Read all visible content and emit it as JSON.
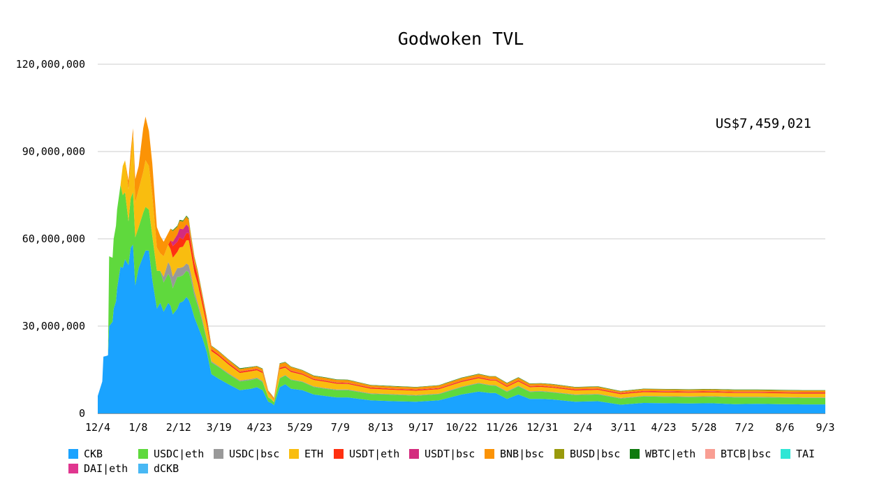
{
  "chart_data": {
    "type": "area",
    "stacked": true,
    "title": "Godwoken TVL",
    "annotation": "US$7,459,021",
    "xlabel": "",
    "ylabel": "",
    "ylim": [
      0,
      120000000
    ],
    "y_ticks": [
      0,
      30000000,
      60000000,
      90000000,
      120000000
    ],
    "y_tick_labels": [
      "0",
      "30,000,000",
      "60,000,000",
      "90,000,000",
      "120,000,000"
    ],
    "x_tick_labels": [
      "12/4",
      "1/8",
      "2/12",
      "3/19",
      "4/23",
      "5/29",
      "7/9",
      "8/13",
      "9/17",
      "10/22",
      "11/26",
      "12/31",
      "2/4",
      "3/11",
      "4/23",
      "5/28",
      "7/2",
      "8/6",
      "9/3"
    ],
    "grid": "horizontal",
    "legend_position": "bottom",
    "x_index": [
      0,
      4,
      5,
      8,
      9,
      10,
      13,
      14,
      16,
      17,
      20,
      22,
      24,
      27,
      29,
      31,
      33,
      36,
      40,
      42,
      45,
      48,
      52,
      55,
      58,
      62,
      64,
      66,
      70,
      72,
      75,
      78,
      80,
      82,
      85,
      88,
      92,
      96,
      100,
      106,
      115,
      125,
      135,
      140,
      145,
      150,
      153,
      155,
      160,
      165,
      170,
      180,
      190,
      200,
      210,
      220,
      240,
      260,
      280,
      300,
      320,
      335,
      345,
      350,
      360,
      370,
      380,
      390,
      400,
      420,
      440,
      460,
      480,
      500,
      520,
      540,
      560,
      580,
      600,
      620,
      640
    ],
    "series": [
      {
        "name": "CKB",
        "color": "#1aa3ff",
        "values": [
          6.0,
          11.0,
          19.5,
          19.8,
          20.0,
          30.0,
          31.5,
          36.0,
          38.5,
          43.0,
          50.5,
          50.0,
          53.0,
          51.0,
          57.0,
          58.0,
          44.0,
          50.0,
          54.0,
          56.0,
          56.0,
          46.0,
          36.0,
          38.0,
          35.0,
          38.0,
          37.0,
          34.0,
          36.0,
          38.0,
          38.5,
          40.0,
          39.0,
          37.0,
          33.0,
          30.0,
          26.0,
          21.0,
          13.5,
          12.0,
          10.0,
          8.0,
          8.5,
          9.0,
          8.0,
          4.0,
          3.5,
          2.8,
          9.0,
          10.0,
          8.5,
          8.0,
          6.5,
          6.0,
          5.5,
          5.5,
          4.5,
          4.2,
          4.0,
          4.5,
          6.5,
          7.5,
          7.0,
          7.0,
          5.0,
          6.5,
          5.0,
          5.0,
          4.8,
          4.0,
          4.2,
          3.0,
          3.6,
          3.5,
          3.4,
          3.5,
          3.2,
          3.3,
          3.2,
          3.1,
          3.1
        ]
      },
      {
        "name": "USDC|eth",
        "color": "#5fd93d",
        "values": [
          0,
          0,
          0,
          0,
          0,
          24.0,
          22.0,
          24.0,
          26.0,
          27.0,
          28.0,
          25.0,
          23.0,
          15.0,
          17.0,
          18.0,
          16.5,
          14.0,
          15.0,
          15.0,
          14.0,
          15.0,
          13.0,
          11.0,
          10.0,
          10.0,
          9.5,
          9.0,
          11.0,
          9.0,
          9.0,
          9.0,
          9.5,
          9.0,
          7.5,
          7.0,
          5.5,
          4.0,
          4.0,
          4.0,
          3.5,
          3.0,
          3.0,
          3.0,
          2.8,
          1.5,
          1.2,
          1.0,
          3.0,
          3.0,
          3.0,
          2.8,
          2.6,
          2.5,
          2.5,
          2.5,
          2.2,
          2.2,
          2.1,
          2.1,
          2.5,
          2.8,
          2.6,
          2.5,
          2.4,
          2.8,
          2.4,
          2.5,
          2.4,
          2.3,
          2.3,
          2.1,
          2.2,
          2.2,
          2.2,
          2.2,
          2.3,
          2.2,
          2.2,
          2.2,
          2.2
        ]
      },
      {
        "name": "USDC|bsc",
        "color": "#999999",
        "values": [
          0,
          0,
          0,
          0,
          0,
          0,
          0,
          0,
          0,
          0,
          0,
          0,
          0,
          0,
          0,
          0,
          0,
          0,
          0,
          0,
          0,
          0,
          0,
          0,
          2.0,
          4.0,
          4.0,
          4.0,
          3.0,
          3.0,
          2.8,
          2.5,
          2.5,
          2.0,
          1.5,
          1.0,
          0.8,
          0.6,
          0.4,
          0.3,
          0.3,
          0.3,
          0.3,
          0.3,
          0.3,
          0.1,
          0.1,
          0.1,
          0.2,
          0.2,
          0.2,
          0.2,
          0.2,
          0.2,
          0.2,
          0.2,
          0.2,
          0.2,
          0.2,
          0.2,
          0.2,
          0.2,
          0.2,
          0.2,
          0.2,
          0.2,
          0.2,
          0.2,
          0.2,
          0.2,
          0.2,
          0.2,
          0.2,
          0.2,
          0.2,
          0.2,
          0.2,
          0.2,
          0.2,
          0.2,
          0.2
        ]
      },
      {
        "name": "ETH",
        "color": "#f9bd0f",
        "values": [
          0,
          0,
          0,
          0,
          0,
          0,
          0,
          0,
          0,
          0,
          0,
          10.0,
          11.0,
          11.0,
          12.0,
          20.0,
          12.0,
          13.0,
          14.0,
          16.0,
          15.0,
          14.0,
          8.0,
          6.0,
          7.0,
          6.0,
          6.0,
          6.5,
          5.5,
          7.0,
          7.0,
          8.0,
          8.5,
          7.5,
          6.5,
          6.5,
          5.0,
          4.5,
          3.5,
          3.5,
          3.0,
          2.6,
          2.7,
          2.5,
          2.8,
          1.5,
          1.0,
          0.8,
          3.0,
          2.5,
          2.5,
          2.3,
          2.2,
          2.2,
          2.0,
          1.9,
          1.6,
          1.5,
          1.5,
          1.5,
          1.6,
          1.6,
          1.5,
          1.6,
          1.5,
          1.5,
          1.4,
          1.4,
          1.4,
          1.4,
          1.4,
          1.3,
          1.3,
          1.3,
          1.3,
          1.3,
          1.3,
          1.3,
          1.3,
          1.3,
          1.3
        ]
      },
      {
        "name": "USDT|eth",
        "color": "#ff3010",
        "values": [
          0,
          0,
          0,
          0,
          0,
          0,
          0,
          0,
          0,
          0,
          0,
          0,
          0,
          0,
          0,
          0,
          0,
          0,
          0,
          0,
          0,
          0,
          0,
          0,
          0,
          0,
          3.0,
          4.0,
          3.5,
          3.5,
          2.5,
          2.5,
          2.5,
          3.0,
          3.0,
          2.5,
          2.0,
          1.5,
          0.6,
          0.5,
          0.5,
          0.4,
          0.4,
          0.4,
          0.4,
          0.2,
          0.2,
          0.2,
          0.4,
          0.4,
          0.4,
          0.3,
          0.3,
          0.3,
          0.3,
          0.3,
          0.3,
          0.3,
          0.3,
          0.3,
          0.3,
          0.3,
          0.3,
          0.3,
          0.3,
          0.3,
          0.3,
          0.3,
          0.3,
          0.3,
          0.3,
          0.3,
          0.3,
          0.3,
          0.3,
          0.3,
          0.3,
          0.3,
          0.3,
          0.3,
          0.3
        ]
      },
      {
        "name": "USDT|bsc",
        "color": "#d42b7e",
        "values": [
          0,
          0,
          0,
          0,
          0,
          0,
          0,
          0,
          0,
          0,
          0,
          0,
          0,
          0,
          0,
          0,
          0,
          0,
          0,
          0,
          0,
          0,
          0,
          0,
          0,
          0,
          0,
          1.5,
          2.5,
          3.0,
          3.5,
          3.0,
          2.0,
          0.5,
          0.3,
          0.2,
          0.2,
          0.1,
          0.1,
          0.1,
          0.1,
          0.1,
          0.1,
          0.1,
          0.1,
          0.05,
          0.05,
          0.05,
          0.1,
          0.1,
          0.1,
          0.1,
          0.1,
          0.1,
          0.1,
          0.1,
          0.1,
          0.1,
          0.1,
          0.1,
          0.1,
          0.1,
          0.1,
          0.1,
          0.1,
          0.1,
          0.1,
          0.1,
          0.1,
          0.1,
          0.1,
          0.1,
          0.1,
          0.1,
          0.1,
          0.1,
          0.1,
          0.1,
          0.1,
          0.1,
          0.1
        ]
      },
      {
        "name": "BNB|bsc",
        "color": "#fb9306",
        "values": [
          0,
          0,
          0,
          0,
          0,
          0,
          0,
          0,
          0,
          0,
          0,
          0,
          0,
          3.0,
          4.0,
          2.0,
          8.0,
          8.0,
          15.0,
          15.0,
          12.0,
          11.0,
          7.0,
          6.0,
          5.0,
          4.0,
          4.0,
          3.5,
          2.5,
          2.5,
          2.5,
          2.5,
          2.5,
          2.0,
          1.8,
          1.5,
          1.2,
          1.0,
          1.0,
          1.0,
          1.0,
          0.8,
          0.8,
          0.8,
          0.8,
          0.4,
          0.3,
          0.3,
          1.3,
          1.3,
          1.2,
          1.0,
          0.9,
          0.9,
          0.9,
          0.9,
          0.7,
          0.7,
          0.7,
          0.8,
          0.9,
          0.9,
          0.9,
          0.9,
          0.8,
          0.8,
          0.7,
          0.7,
          0.7,
          0.6,
          0.6,
          0.5,
          0.6,
          0.6,
          0.6,
          0.6,
          0.6,
          0.6,
          0.6,
          0.6,
          0.6
        ]
      },
      {
        "name": "BUSD|bsc",
        "color": "#999a0c",
        "values": [
          0,
          0,
          0,
          0,
          0,
          0,
          0,
          0,
          0,
          0,
          0,
          0,
          0,
          0,
          0,
          0,
          0,
          0,
          0,
          0,
          0,
          0,
          0,
          0,
          0,
          0,
          0,
          0.3,
          0.3,
          0.3,
          0.3,
          0.3,
          0.3,
          0.3,
          0.2,
          0.2,
          0.2,
          0.2,
          0.1,
          0.1,
          0.1,
          0.1,
          0.1,
          0.1,
          0.1,
          0.05,
          0.05,
          0.05,
          0.1,
          0.1,
          0.1,
          0.1,
          0.1,
          0.1,
          0.1,
          0.1,
          0.1,
          0.1,
          0.1,
          0.1,
          0.1,
          0.1,
          0.1,
          0.1,
          0.1,
          0.1,
          0.1,
          0.1,
          0.1,
          0.1,
          0.1,
          0.1,
          0.1,
          0.1,
          0.1,
          0.1,
          0.1,
          0.1,
          0.1,
          0.1,
          0.1
        ]
      },
      {
        "name": "WBTC|eth",
        "color": "#0e7a0e",
        "values": [
          0,
          0,
          0,
          0,
          0,
          0,
          0,
          0,
          0,
          0,
          0,
          0,
          0,
          0,
          0,
          0,
          0,
          0,
          0,
          0,
          0,
          0,
          0,
          0,
          0,
          0,
          0,
          0.2,
          0.2,
          0.2,
          0.2,
          0.2,
          0.2,
          0.2,
          0.2,
          0.2,
          0.2,
          0.1,
          0.1,
          0.1,
          0.1,
          0.2,
          0.1,
          0.1,
          0.1,
          0.05,
          0.05,
          0.05,
          0.1,
          0.1,
          0.1,
          0.1,
          0.1,
          0.1,
          0.1,
          0.1,
          0.1,
          0.1,
          0.1,
          0.1,
          0.1,
          0.1,
          0.1,
          0.1,
          0.1,
          0.1,
          0.1,
          0.1,
          0.1,
          0.1,
          0.1,
          0.1,
          0.1,
          0.1,
          0.1,
          0.1,
          0.1,
          0.1,
          0.1,
          0.1,
          0.1
        ]
      },
      {
        "name": "BTCB|bsc",
        "color": "#f99e93",
        "values": [
          0,
          0,
          0,
          0,
          0,
          0,
          0,
          0,
          0,
          0,
          0,
          0,
          0,
          0,
          0,
          0,
          0,
          0,
          0,
          0,
          0,
          0,
          0,
          0,
          0,
          0,
          0,
          0,
          0,
          0,
          0,
          0,
          0,
          0,
          0,
          0,
          0,
          0,
          0,
          0,
          0,
          0,
          0,
          0,
          0,
          0,
          0,
          0,
          0,
          0,
          0,
          0,
          0,
          0,
          0,
          0,
          0,
          0,
          0,
          0,
          0,
          0,
          0,
          0,
          0,
          0,
          0,
          0,
          0,
          0,
          0,
          0,
          0,
          0,
          0,
          0,
          0,
          0,
          0,
          0,
          0
        ]
      },
      {
        "name": "TAI",
        "color": "#2ee6d5",
        "values": [
          0,
          0,
          0,
          0,
          0,
          0,
          0,
          0,
          0,
          0,
          0,
          0,
          0,
          0,
          0,
          0,
          0,
          0,
          0,
          0,
          0,
          0,
          0,
          0,
          0,
          0,
          0,
          0,
          0,
          0,
          0,
          0,
          0,
          0,
          0,
          0,
          0,
          0,
          0,
          0,
          0,
          0,
          0,
          0,
          0,
          0,
          0,
          0,
          0,
          0,
          0,
          0,
          0,
          0,
          0,
          0,
          0,
          0,
          0,
          0,
          0,
          0,
          0,
          0,
          0,
          0,
          0,
          0,
          0,
          0,
          0,
          0,
          0,
          0,
          0,
          0,
          0,
          0,
          0,
          0,
          0
        ]
      },
      {
        "name": "DAI|eth",
        "color": "#e0368f",
        "values": [
          0,
          0,
          0,
          0,
          0,
          0,
          0,
          0,
          0,
          0,
          0,
          0,
          0,
          0,
          0,
          0,
          0,
          0,
          0,
          0,
          0,
          0,
          0,
          0,
          0,
          0,
          0,
          0,
          0,
          0,
          0,
          0,
          0,
          0,
          0,
          0,
          0,
          0,
          0,
          0,
          0,
          0,
          0,
          0,
          0,
          0,
          0,
          0,
          0,
          0,
          0,
          0,
          0,
          0,
          0,
          0,
          0,
          0,
          0,
          0,
          0,
          0,
          0,
          0,
          0,
          0,
          0,
          0,
          0,
          0,
          0,
          0,
          0,
          0,
          0,
          0,
          0,
          0,
          0,
          0,
          0
        ]
      },
      {
        "name": "dCKB",
        "color": "#48b8f4",
        "values": [
          0,
          0,
          0,
          0,
          0,
          0,
          0,
          0,
          0,
          0,
          0,
          0,
          0,
          0,
          0,
          0,
          0,
          0,
          0,
          0,
          0,
          0,
          0,
          0,
          0,
          0,
          0,
          0,
          0,
          0,
          0,
          0,
          0,
          0,
          0,
          0,
          0,
          0,
          0,
          0,
          0,
          0,
          0,
          0,
          0,
          0,
          0,
          0,
          0,
          0,
          0,
          0,
          0,
          0,
          0,
          0,
          0,
          0,
          0,
          0,
          0,
          0,
          0,
          0,
          0,
          0,
          0,
          0,
          0,
          0,
          0,
          0,
          0,
          0,
          0,
          0,
          0,
          0,
          0,
          0,
          0
        ]
      }
    ],
    "value_unit": "millions USD"
  }
}
